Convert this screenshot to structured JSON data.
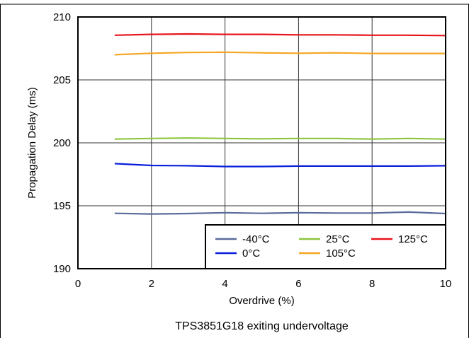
{
  "chart_data": {
    "type": "line",
    "title": "",
    "caption": "TPS3851G18 exiting undervoltage",
    "xlabel": "Overdrive (%)",
    "ylabel": "Propagation Delay (ms)",
    "xlim": [
      0,
      10
    ],
    "ylim": [
      190,
      210
    ],
    "xticks": [
      0,
      2,
      4,
      6,
      8,
      10
    ],
    "yticks": [
      190,
      195,
      200,
      205,
      210
    ],
    "grid": true,
    "legend_position": "bottom-right",
    "x": [
      1,
      2,
      3,
      4,
      5,
      6,
      7,
      8,
      9,
      10
    ],
    "series": [
      {
        "name": "-40°C",
        "color": "#5b6b9a",
        "values": [
          194.4,
          194.35,
          194.38,
          194.45,
          194.4,
          194.45,
          194.42,
          194.42,
          194.5,
          194.38
        ]
      },
      {
        "name": "0°C",
        "color": "#0a1fdc",
        "values": [
          198.35,
          198.2,
          198.18,
          198.12,
          198.12,
          198.15,
          198.15,
          198.15,
          198.15,
          198.18
        ]
      },
      {
        "name": "25°C",
        "color": "#8cc63f",
        "values": [
          200.3,
          200.35,
          200.38,
          200.35,
          200.32,
          200.35,
          200.35,
          200.3,
          200.35,
          200.3
        ]
      },
      {
        "name": "105°C",
        "color": "#f5a623",
        "values": [
          207.0,
          207.12,
          207.18,
          207.2,
          207.15,
          207.12,
          207.15,
          207.1,
          207.1,
          207.1
        ]
      },
      {
        "name": "125°C",
        "color": "#e8141c",
        "values": [
          208.55,
          208.62,
          208.65,
          208.62,
          208.62,
          208.58,
          208.58,
          208.55,
          208.55,
          208.52
        ]
      }
    ]
  }
}
